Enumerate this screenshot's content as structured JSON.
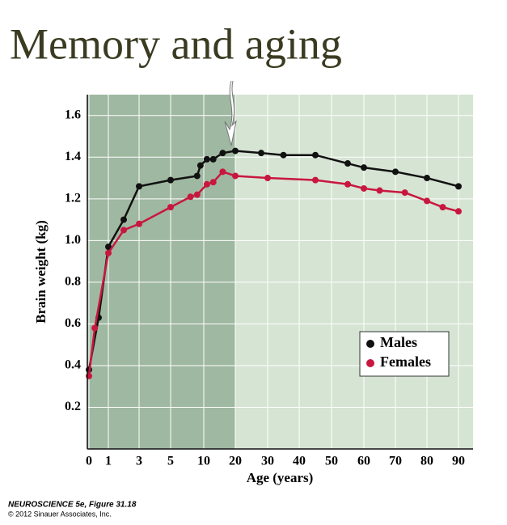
{
  "title": "Memory and aging",
  "chart_data": {
    "type": "line",
    "xlabel": "Age (years)",
    "ylabel": "Brain weight (kg)",
    "xlim": [
      0,
      95
    ],
    "ylim": [
      0,
      1.7
    ],
    "xticks": [
      0,
      1,
      3,
      5,
      10,
      20,
      30,
      40,
      50,
      60,
      70,
      80,
      90
    ],
    "yticks": [
      0.2,
      0.4,
      0.6,
      0.8,
      {
        "value": 1,
        "label": "1.0"
      },
      1.2,
      1.4,
      1.6
    ],
    "grid": true,
    "legend": "lower right",
    "series": [
      {
        "name": "Males",
        "color": "#111111",
        "x": [
          0,
          0.5,
          1,
          2,
          3,
          5,
          9,
          9.5,
          11,
          13,
          16,
          20,
          28,
          35,
          45,
          55,
          60,
          70,
          80,
          90
        ],
        "values": [
          0.38,
          0.63,
          0.97,
          1.1,
          1.26,
          1.29,
          1.31,
          1.36,
          1.39,
          1.39,
          1.42,
          1.43,
          1.42,
          1.41,
          1.41,
          1.37,
          1.35,
          1.33,
          1.3,
          1.26
        ]
      },
      {
        "name": "Females",
        "color": "#c8173f",
        "x": [
          0,
          0.3,
          1,
          2,
          3,
          5,
          8,
          9,
          11,
          13,
          16,
          20,
          30,
          45,
          55,
          60,
          65,
          73,
          80,
          85,
          90
        ],
        "values": [
          0.35,
          0.58,
          0.94,
          1.05,
          1.08,
          1.16,
          1.21,
          1.22,
          1.27,
          1.28,
          1.33,
          1.31,
          1.3,
          1.29,
          1.27,
          1.25,
          1.24,
          1.23,
          1.19,
          1.16,
          1.14
        ]
      }
    ]
  },
  "caption": {
    "source": "NEUROSCIENCE 5e, Figure 31.18",
    "copyright": "© 2012 Sinauer Associates, Inc."
  }
}
